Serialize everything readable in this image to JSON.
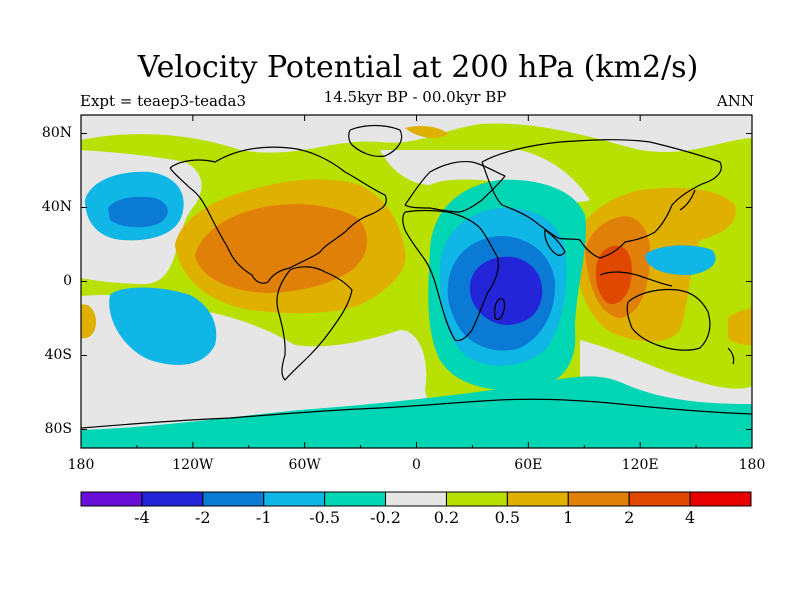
{
  "title": "Velocity Potential at 200 hPa (km2/s)",
  "subtitle": "14.5kyr BP - 00.0kyr BP",
  "left_string": "Expt = teaep3-teada3",
  "right_string": "ANN",
  "chart_data": {
    "type": "contour-map",
    "variable": "Velocity Potential at 200 hPa",
    "units": "km2/s",
    "experiment": "teaep3-teada3",
    "period": "14.5kyr BP - 00.0kyr BP",
    "season": "ANN",
    "lon_range": [
      -180,
      180
    ],
    "lat_range": [
      -90,
      90
    ],
    "x_ticks": [
      {
        "value": -180,
        "label": "180"
      },
      {
        "value": -120,
        "label": "120W"
      },
      {
        "value": -60,
        "label": "60W"
      },
      {
        "value": 0,
        "label": "0"
      },
      {
        "value": 60,
        "label": "60E"
      },
      {
        "value": 120,
        "label": "120E"
      },
      {
        "value": 180,
        "label": "180"
      }
    ],
    "y_ticks": [
      {
        "value": 80,
        "label": "80N"
      },
      {
        "value": 40,
        "label": "40N"
      },
      {
        "value": 0,
        "label": "0"
      },
      {
        "value": -40,
        "label": "40S"
      },
      {
        "value": -80,
        "label": "80S"
      }
    ],
    "colorbar": {
      "levels": [
        "-4",
        "-2",
        "-1",
        "-0.5",
        "-0.2",
        "0.2",
        "0.5",
        "1",
        "2",
        "4"
      ],
      "colors": [
        "#6a0fd8",
        "#2424d8",
        "#0a7ad4",
        "#10b6e6",
        "#00d6b4",
        "#e6e6e6",
        "#b8e000",
        "#e0b000",
        "#e08008",
        "#e04800",
        "#e80000"
      ]
    },
    "features": [
      {
        "label": "Indian Ocean / East Africa minimum",
        "lon": 48,
        "lat": -2,
        "value": -2.5
      },
      {
        "label": "Maritime Continent maximum",
        "lon": 105,
        "lat": -8,
        "value": 2.5
      },
      {
        "label": "Central America / Caribbean maximum",
        "lon": -80,
        "lat": 15,
        "value": 1.5
      },
      {
        "label": "North Pacific minimum",
        "lon": -152,
        "lat": 36,
        "value": -0.8
      },
      {
        "label": "South Pacific minimum",
        "lon": -145,
        "lat": -20,
        "value": -0.4
      },
      {
        "label": "Western Pacific minimum",
        "lon": 145,
        "lat": 12,
        "value": -0.4
      }
    ]
  }
}
